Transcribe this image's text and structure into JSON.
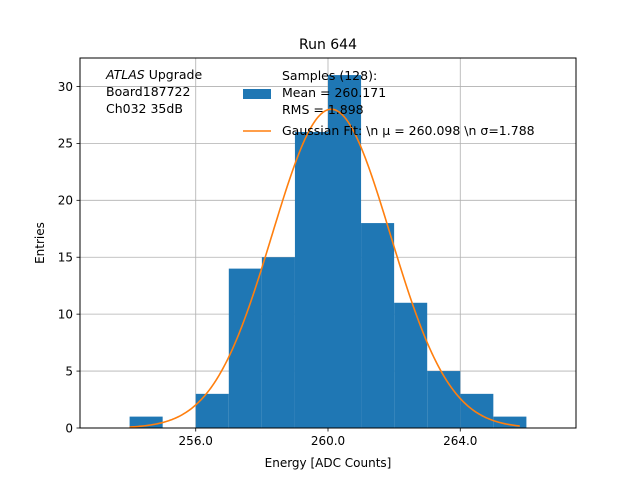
{
  "chart_data": {
    "type": "bar",
    "title": "Run 644",
    "xlabel": "Energy [ADC Counts]",
    "ylabel": "Entries",
    "xlim": [
      252.5,
      267.5
    ],
    "ylim": [
      0,
      32.5
    ],
    "xticks": [
      256.0,
      260.0,
      264.0
    ],
    "xtick_labels": [
      "256.0",
      "260.0",
      "264.0"
    ],
    "yticks": [
      0,
      5,
      10,
      15,
      20,
      25,
      30
    ],
    "ytick_labels": [
      "0",
      "5",
      "10",
      "15",
      "20",
      "25",
      "30"
    ],
    "grid": true,
    "histogram": {
      "bin_edges": [
        254,
        255,
        256,
        257,
        258,
        259,
        260,
        261,
        262,
        263,
        264,
        265,
        266
      ],
      "counts": [
        1,
        0,
        3,
        14,
        15,
        26,
        31,
        18,
        11,
        5,
        3,
        1
      ],
      "color": "#1f77b4"
    },
    "fit": {
      "type": "gaussian",
      "mu": 260.098,
      "sigma": 1.788,
      "amplitude": 28,
      "x_range": [
        254,
        265.8
      ],
      "color": "#ff7f0e"
    },
    "legend": {
      "placement": "upper center",
      "entries": [
        {
          "key": "hist",
          "lines": [
            "Samples (128):",
            " Mean = 260.171",
            " RMS = 1.898"
          ]
        },
        {
          "key": "fit",
          "lines": [
            "Gaussian Fit: \\n μ = 260.098 \\n σ=1.788"
          ]
        }
      ]
    },
    "annotation": {
      "lines": [
        {
          "italic": "ATLAS",
          "text": " Upgrade"
        },
        {
          "italic": "",
          "text": " Board187722"
        },
        {
          "italic": "",
          "text": " Ch032 35dB"
        }
      ]
    }
  }
}
